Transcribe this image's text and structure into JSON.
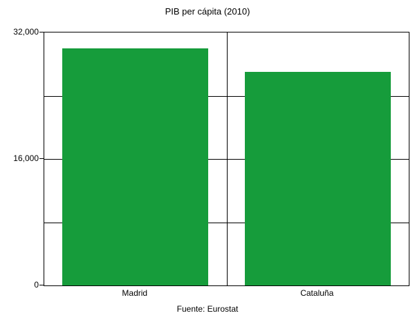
{
  "chart_data": {
    "type": "bar",
    "title": "PIB per cápita (2010)",
    "source": "Fuente: Eurostat",
    "categories": [
      "Madrid",
      "Cataluña"
    ],
    "values": [
      30000,
      27000
    ],
    "xlabel": "",
    "ylabel": "",
    "ylim": [
      0,
      32000
    ],
    "yticks": [
      {
        "value": 0,
        "label": "0"
      },
      {
        "value": 16000,
        "label": "16,000"
      },
      {
        "value": 32000,
        "label": "32,000"
      }
    ],
    "gridline_values": [
      8000,
      16000,
      24000
    ],
    "category_divider": true,
    "bar_color": "#169c3b",
    "axis_color": "#000000",
    "background_color": "#ffffff",
    "legend": "none",
    "grid": "on"
  }
}
